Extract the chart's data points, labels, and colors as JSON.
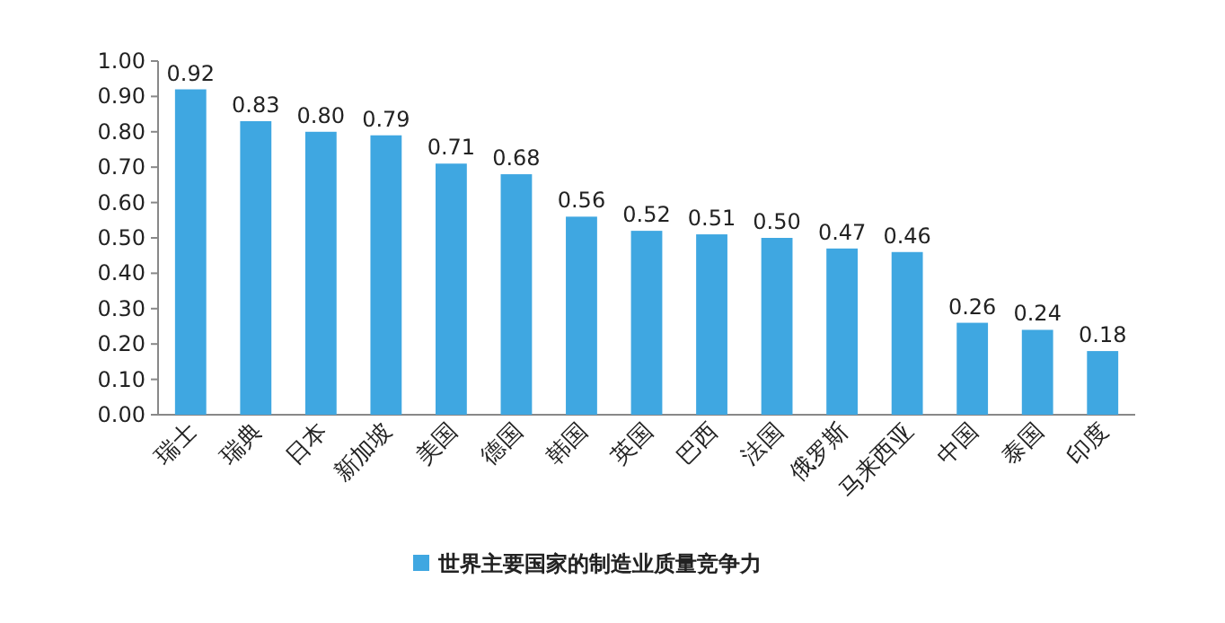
{
  "chart_data": {
    "type": "bar",
    "categories": [
      "瑞士",
      "瑞典",
      "日本",
      "新加坡",
      "美国",
      "德国",
      "韩国",
      "英国",
      "巴西",
      "法国",
      "俄罗斯",
      "马来西亚",
      "中国",
      "泰国",
      "印度"
    ],
    "series": [
      {
        "name": "世界主要国家的制造业质量竞争力",
        "color": "#3fa7e1",
        "values": [
          0.92,
          0.83,
          0.8,
          0.79,
          0.71,
          0.68,
          0.56,
          0.52,
          0.51,
          0.5,
          0.47,
          0.46,
          0.26,
          0.24,
          0.18
        ],
        "value_labels": [
          "0.92",
          "0.83",
          "0.80",
          "0.79",
          "0.71",
          "0.68",
          "0.56",
          "0.52",
          "0.51",
          "0.50",
          "0.47",
          "0.46",
          "0.26",
          "0.24",
          "0.18"
        ]
      }
    ],
    "ylim": [
      0,
      1
    ],
    "yticks": [
      {
        "value": 0,
        "label": "0.00"
      },
      {
        "value": 0.1,
        "label": "0.10"
      },
      {
        "value": 0.2,
        "label": "0.20"
      },
      {
        "value": 0.3,
        "label": "0.30"
      },
      {
        "value": 0.4,
        "label": "0.40"
      },
      {
        "value": 0.5,
        "label": "0.50"
      },
      {
        "value": 0.6,
        "label": "0.60"
      },
      {
        "value": 0.7,
        "label": "0.70"
      },
      {
        "value": 0.8,
        "label": "0.80"
      },
      {
        "value": 0.9,
        "label": "0.90"
      },
      {
        "value": 1,
        "label": "1.00"
      }
    ],
    "legend": "bottom",
    "grid": false
  }
}
